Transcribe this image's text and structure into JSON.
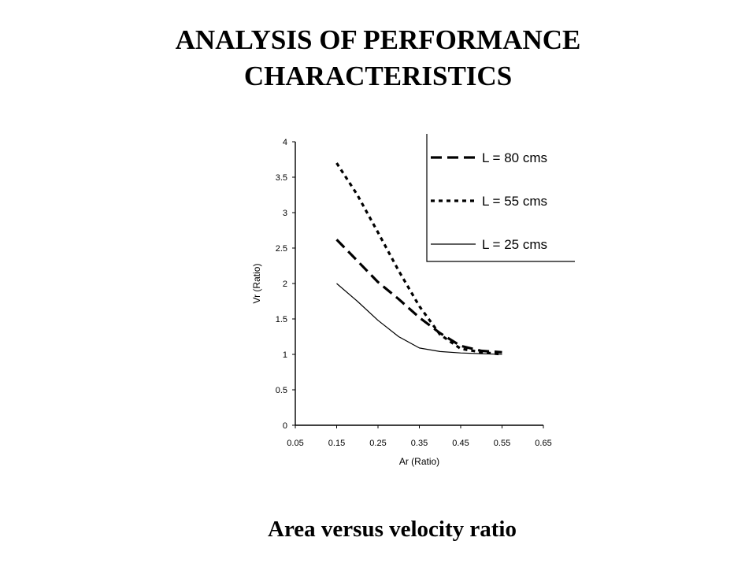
{
  "slide": {
    "title_line1": "ANALYSIS OF PERFORMANCE",
    "title_line2": "CHARACTERISTICS",
    "caption": "Area versus velocity ratio"
  },
  "chart_data": {
    "type": "line",
    "xlabel": "Ar (Ratio)",
    "ylabel": "Vr (Ratio)",
    "xlim": [
      0.05,
      0.65
    ],
    "ylim": [
      0,
      4
    ],
    "x_ticks": [
      "0.05",
      "0.15",
      "0.25",
      "0.35",
      "0.45",
      "0.55",
      "0.65"
    ],
    "y_ticks": [
      "0",
      "0.5",
      "1",
      "1.5",
      "2",
      "2.5",
      "3",
      "3.5",
      "4"
    ],
    "x_tick_values": [
      0.05,
      0.15,
      0.25,
      0.35,
      0.45,
      0.55,
      0.65
    ],
    "y_tick_values": [
      0,
      0.5,
      1,
      1.5,
      2,
      2.5,
      3,
      3.5,
      4
    ],
    "grid": false,
    "legend_position": "top-right",
    "series": [
      {
        "name": "L = 80 cms",
        "style": "long-dash",
        "x": [
          0.15,
          0.2,
          0.25,
          0.3,
          0.35,
          0.4,
          0.45,
          0.5,
          0.55
        ],
        "y": [
          2.62,
          2.32,
          2.02,
          1.78,
          1.52,
          1.3,
          1.12,
          1.05,
          1.03
        ]
      },
      {
        "name": "L = 55 cms",
        "style": "short-dash",
        "x": [
          0.15,
          0.2,
          0.25,
          0.3,
          0.35,
          0.4,
          0.45,
          0.5,
          0.55
        ],
        "y": [
          3.7,
          3.25,
          2.72,
          2.18,
          1.68,
          1.28,
          1.08,
          1.03,
          1.0
        ]
      },
      {
        "name": "L = 25 cms",
        "style": "solid",
        "x": [
          0.15,
          0.2,
          0.25,
          0.3,
          0.35,
          0.4,
          0.45,
          0.5,
          0.55
        ],
        "y": [
          2.0,
          1.75,
          1.48,
          1.25,
          1.09,
          1.04,
          1.02,
          1.01,
          1.0
        ]
      }
    ]
  }
}
